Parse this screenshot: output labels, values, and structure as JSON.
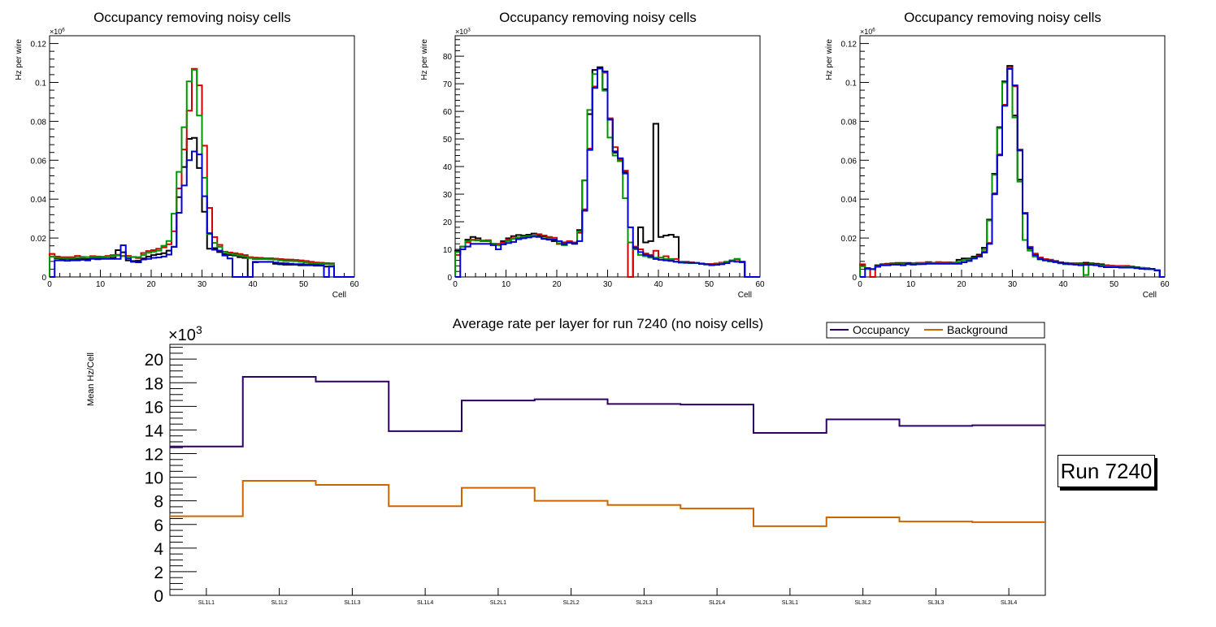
{
  "chart_data": [
    {
      "type": "line",
      "subtype": "step-histogram",
      "title": "Occupancy removing noisy cells",
      "xlabel": "Cell",
      "ylabel": "Hz per wire",
      "y_multiplier_label": "×10^6",
      "xlim": [
        0,
        60
      ],
      "ylim": [
        0,
        0.124
      ],
      "xticks": [
        "0",
        "10",
        "20",
        "30",
        "40",
        "50",
        "60"
      ],
      "yticks": [
        "0",
        "0.02",
        "0.04",
        "0.06",
        "0.08",
        "0.1",
        "0.12"
      ],
      "ytick_values": [
        0,
        0.02,
        0.04,
        0.06,
        0.08,
        0.1,
        0.12
      ],
      "bin_start": 0,
      "bin_width": 1,
      "series": [
        {
          "name": "black",
          "color": "#000000",
          "values": [
            0.0105,
            0.0095,
            0.0093,
            0.0093,
            0.0093,
            0.0093,
            0.0092,
            0.0092,
            0.0095,
            0.0095,
            0.0095,
            0.0095,
            0.0098,
            0.0138,
            0.0127,
            0.0085,
            0.0082,
            0.0083,
            0.0095,
            0.0105,
            0.0112,
            0.0117,
            0.0122,
            0.0135,
            0.0155,
            0.041,
            0.0565,
            0.071,
            0.0715,
            0.056,
            0.0335,
            0.0145,
            0.0148,
            0.0128,
            0.0118,
            0.0112,
            0.011,
            0.0102,
            0.0098,
            0,
            0.0078,
            0.0078,
            0.0078,
            0.0078,
            0.0068,
            0.0065,
            0.0063,
            0.0063,
            0.0063,
            0.006,
            0.006,
            0.006,
            0.0058,
            0.0058,
            0.0053,
            0.0053,
            0,
            0,
            0,
            0
          ]
        },
        {
          "name": "red",
          "color": "#d20000",
          "values": [
            0.0118,
            0.0105,
            0.0102,
            0.0102,
            0.0102,
            0.0108,
            0.0103,
            0.0102,
            0.0107,
            0.0105,
            0.0104,
            0.0108,
            0.0112,
            0.0114,
            0.0108,
            0.0108,
            0.0103,
            0.0097,
            0.0123,
            0.0133,
            0.0138,
            0.0145,
            0.0152,
            0.0168,
            0.0235,
            0.0455,
            0.0655,
            0.0855,
            0.107,
            0.0985,
            0.0675,
            0.0355,
            0.0205,
            0.0165,
            0.013,
            0.0126,
            0.0122,
            0.0118,
            0.0112,
            0.0102,
            0.0099,
            0.0098,
            0.0096,
            0.0096,
            0.0094,
            0.0092,
            0.009,
            0.0089,
            0.0087,
            0.0085,
            0.0082,
            0.0078,
            0.0074,
            0.0073,
            0.0071,
            0.007,
            0,
            0,
            0,
            0
          ]
        },
        {
          "name": "green",
          "color": "#009600",
          "values": [
            0.0105,
            0.0098,
            0.0097,
            0.0097,
            0.0097,
            0.0098,
            0.0099,
            0.0102,
            0.0103,
            0.0101,
            0.0101,
            0.0105,
            0.0108,
            0.011,
            0.0107,
            0.0105,
            0.0102,
            0.0102,
            0.0113,
            0.0124,
            0.013,
            0.0135,
            0.016,
            0.0185,
            0.0325,
            0.054,
            0.077,
            0.1005,
            0.1065,
            0.083,
            0.051,
            0.022,
            0.0175,
            0.0155,
            0.0128,
            0.012,
            0.0115,
            0.011,
            0.0105,
            0.0097,
            0.0092,
            0.0092,
            0.0092,
            0.0091,
            0.0089,
            0.0085,
            0.0082,
            0.0082,
            0.0081,
            0.0078,
            0.0073,
            0.007,
            0.0069,
            0.0068,
            0.0066,
            0.0065,
            0,
            0,
            0,
            0
          ]
        },
        {
          "name": "blue",
          "color": "#0000d2",
          "values": [
            0,
            0.0085,
            0.0085,
            0.0083,
            0.0085,
            0.0085,
            0.0088,
            0.0085,
            0.0093,
            0.0091,
            0.0093,
            0.0093,
            0.0093,
            0.0093,
            0.0163,
            0.0095,
            0.0078,
            0.0075,
            0.009,
            0.0093,
            0.0098,
            0.01,
            0.0105,
            0.0115,
            0.0155,
            0.033,
            0.047,
            0.06,
            0.0645,
            0.063,
            0.0415,
            0.0225,
            0.014,
            0.0135,
            0.011,
            0.0095,
            0,
            0,
            0,
            0,
            0.0075,
            0.0077,
            0.0077,
            0.0077,
            0.0074,
            0.0071,
            0.007,
            0.0068,
            0.0066,
            0.0066,
            0.0063,
            0.0063,
            0.0062,
            0.006,
            0,
            0.0055,
            0,
            0,
            0,
            0
          ]
        }
      ]
    },
    {
      "type": "line",
      "subtype": "step-histogram",
      "title": "Occupancy removing noisy cells",
      "xlabel": "Cell",
      "ylabel": "Hz per wire",
      "y_multiplier_label": "×10^3",
      "xlim": [
        0,
        60
      ],
      "ylim": [
        0,
        87.4
      ],
      "xticks": [
        "0",
        "10",
        "20",
        "30",
        "40",
        "50",
        "60"
      ],
      "yticks": [
        "0",
        "10",
        "20",
        "30",
        "40",
        "50",
        "60",
        "70",
        "80"
      ],
      "ytick_values": [
        0,
        10,
        20,
        30,
        40,
        50,
        60,
        70,
        80
      ],
      "bin_start": 0,
      "bin_width": 1,
      "series": [
        {
          "name": "black",
          "color": "#000000",
          "values": [
            9.5,
            11,
            13.5,
            14.5,
            14,
            13,
            13,
            12,
            11.8,
            13,
            14,
            14.8,
            15.2,
            15,
            15.3,
            15.7,
            15,
            14.7,
            14.4,
            13,
            12,
            12.5,
            12.5,
            12,
            17,
            35,
            59,
            75,
            76,
            68,
            57,
            45,
            42,
            38,
            0,
            10,
            18,
            12.5,
            13,
            55.5,
            14.5,
            15,
            15.3,
            14.5,
            5.3,
            5.3,
            5.3,
            5,
            4.7,
            4.7,
            4.7,
            4.7,
            5,
            5.3,
            6,
            6.5,
            5.5,
            0,
            0,
            0
          ]
        },
        {
          "name": "red",
          "color": "#d20000",
          "values": [
            8,
            11,
            12.5,
            13.5,
            13.3,
            13.2,
            13.3,
            12,
            12,
            12.5,
            13.5,
            14,
            14.3,
            14.6,
            14.9,
            15,
            15.5,
            15,
            14.5,
            14.2,
            12,
            12.3,
            13,
            12.5,
            16,
            24.5,
            46.5,
            69,
            75.5,
            74,
            57.5,
            47,
            42.5,
            38.5,
            0,
            11,
            10,
            8.5,
            8,
            9.5,
            7,
            7.5,
            6,
            6.5,
            5.5,
            5.5,
            5.3,
            5,
            4.9,
            4.7,
            4.7,
            4.9,
            5.2,
            5.5,
            6,
            6.3,
            5.5,
            0,
            0,
            0
          ]
        },
        {
          "name": "green",
          "color": "#009600",
          "values": [
            9,
            11,
            13,
            13.3,
            13.2,
            13,
            13,
            11.8,
            11.5,
            12,
            13,
            13.8,
            14.3,
            14.6,
            14.8,
            15,
            14.6,
            14,
            13.9,
            13.6,
            12.2,
            11.5,
            12.5,
            12.2,
            16.5,
            35,
            60.5,
            73.5,
            75.5,
            67.5,
            50.5,
            44,
            42,
            28.5,
            12.5,
            10,
            8,
            7.5,
            7,
            7,
            7,
            6.5,
            6.5,
            5.5,
            5.3,
            5.2,
            5,
            5,
            4.7,
            4.5,
            4.2,
            4.5,
            5,
            5.5,
            6,
            6.5,
            5.3,
            0,
            0,
            0
          ]
        },
        {
          "name": "blue",
          "color": "#0000d2",
          "values": [
            0,
            10,
            11,
            12,
            12,
            12,
            12,
            11.5,
            10,
            11.8,
            12.3,
            12.7,
            13.7,
            14,
            14.3,
            14.6,
            14.5,
            13.8,
            13.5,
            13.5,
            13,
            11.8,
            12.4,
            12.2,
            13,
            24,
            46,
            68.5,
            75.5,
            74.5,
            57,
            45.5,
            43,
            37.5,
            18,
            10.5,
            9,
            8,
            7.5,
            6.5,
            6.2,
            6,
            5.8,
            5.5,
            5.2,
            5.1,
            5.1,
            5.1,
            4.8,
            4.6,
            4.4,
            4.4,
            4.6,
            5,
            5.7,
            5.5,
            5.4,
            0,
            0,
            0
          ]
        }
      ]
    },
    {
      "type": "line",
      "subtype": "step-histogram",
      "title": "Occupancy removing noisy cells",
      "xlabel": "Cell",
      "ylabel": "Hz per wire",
      "y_multiplier_label": "×10^6",
      "xlim": [
        0,
        60
      ],
      "ylim": [
        0,
        0.124
      ],
      "xticks": [
        "0",
        "10",
        "20",
        "30",
        "40",
        "50",
        "60"
      ],
      "yticks": [
        "0",
        "0.02",
        "0.04",
        "0.06",
        "0.08",
        "0.1",
        "0.12"
      ],
      "ytick_values": [
        0,
        0.02,
        0.04,
        0.06,
        0.08,
        0.1,
        0.12
      ],
      "bin_start": 0,
      "bin_width": 1,
      "series": [
        {
          "name": "black",
          "color": "#000000",
          "values": [
            0.006,
            0.0045,
            0.004,
            0.006,
            0.0065,
            0.0068,
            0.007,
            0.0072,
            0.0072,
            0.0072,
            0.007,
            0.0072,
            0.0073,
            0.0076,
            0.0073,
            0.0076,
            0.0075,
            0.0075,
            0.0074,
            0.0088,
            0.0095,
            0.0095,
            0.0105,
            0.0115,
            0.015,
            0.0295,
            0.053,
            0.077,
            0.1005,
            0.1085,
            0.083,
            0.05,
            0.019,
            0.0145,
            0.0115,
            0.0098,
            0.0092,
            0.0088,
            0.0082,
            0.0075,
            0.0072,
            0.007,
            0.007,
            0.007,
            0.0073,
            0.007,
            0.0068,
            0.0065,
            0.006,
            0.0058,
            0.0055,
            0.0055,
            0.0055,
            0.0053,
            0.005,
            0.0047,
            0.0045,
            0.0042,
            0.0035,
            0
          ]
        },
        {
          "name": "red",
          "color": "#d20000",
          "values": [
            0.0065,
            0.0045,
            0,
            0.0055,
            0.0063,
            0.0065,
            0.0068,
            0.007,
            0.007,
            0.0068,
            0.0068,
            0.0072,
            0.0073,
            0.0073,
            0.0072,
            0.0075,
            0.0075,
            0.0074,
            0.0073,
            0.0075,
            0.0085,
            0.009,
            0.0095,
            0.0108,
            0.013,
            0.0175,
            0.043,
            0.063,
            0.0885,
            0.1075,
            0.098,
            0.0655,
            0.033,
            0.0155,
            0.012,
            0.01,
            0.0092,
            0.0088,
            0.008,
            0.0073,
            0.007,
            0.0068,
            0.0068,
            0.0066,
            0.0066,
            0.0065,
            0.0063,
            0.0058,
            0.0058,
            0.0058,
            0.0057,
            0.0057,
            0.0057,
            0.0053,
            0.0048,
            0.0046,
            0.0044,
            0.004,
            0.0035,
            0
          ]
        },
        {
          "name": "green",
          "color": "#009600",
          "values": [
            0.0055,
            0.004,
            0.004,
            0.0055,
            0.006,
            0.0063,
            0.0065,
            0.0066,
            0.0066,
            0.0066,
            0.0066,
            0.0068,
            0.007,
            0.0072,
            0.0072,
            0.0072,
            0.0072,
            0.0072,
            0.0072,
            0.0078,
            0.0085,
            0.009,
            0.0098,
            0.0105,
            0.014,
            0.029,
            0.0525,
            0.0765,
            0.1,
            0.107,
            0.082,
            0.049,
            0.019,
            0.0135,
            0.0105,
            0.009,
            0.0085,
            0.008,
            0.0075,
            0.007,
            0.0065,
            0.0065,
            0.0065,
            0.0065,
            0.001,
            0.0065,
            0.0063,
            0.006,
            0.0055,
            0.0055,
            0.0053,
            0.0053,
            0.005,
            0.005,
            0.0048,
            0.0045,
            0.0042,
            0.004,
            0.0035,
            0
          ]
        },
        {
          "name": "blue",
          "color": "#0000d2",
          "values": [
            0,
            0.0045,
            0.004,
            0.0052,
            0.006,
            0.006,
            0.0063,
            0.0063,
            0.006,
            0.0066,
            0.0063,
            0.0065,
            0.0066,
            0.0068,
            0.0068,
            0.0068,
            0.0068,
            0.0068,
            0.0068,
            0.0068,
            0.0075,
            0.0082,
            0.0095,
            0.0105,
            0.0125,
            0.017,
            0.0425,
            0.0625,
            0.088,
            0.107,
            0.0985,
            0.065,
            0.0325,
            0.015,
            0.0112,
            0.0092,
            0.0085,
            0.0082,
            0.0078,
            0.0072,
            0.0068,
            0.0065,
            0.0063,
            0.006,
            0.0062,
            0.0062,
            0.006,
            0.0055,
            0.005,
            0.005,
            0.005,
            0.0048,
            0.0048,
            0.0048,
            0.0045,
            0.0042,
            0.004,
            0.004,
            0.0033,
            0
          ]
        }
      ]
    },
    {
      "type": "line",
      "subtype": "step-histogram",
      "title": "Average rate per layer for run 7240 (no noisy cells)",
      "xlabel": "",
      "ylabel": "Mean Hz/Cell",
      "y_multiplier_label": "×10^3",
      "categories": [
        "SL1L1",
        "SL1L2",
        "SL1L3",
        "SL1L4",
        "SL2L1",
        "SL2L2",
        "SL2L3",
        "SL2L4",
        "SL3L1",
        "SL3L2",
        "SL3L3",
        "SL3L4"
      ],
      "ylim": [
        0,
        21.25
      ],
      "yticks": [
        "0",
        "2",
        "4",
        "6",
        "8",
        "10",
        "12",
        "14",
        "16",
        "18",
        "20"
      ],
      "ytick_values": [
        0,
        2,
        4,
        6,
        8,
        10,
        12,
        14,
        16,
        18,
        20
      ],
      "legend": "top-right",
      "series": [
        {
          "name": "Occupancy",
          "color": "#2d0066",
          "values": [
            12.6,
            18.5,
            18.1,
            13.9,
            16.5,
            16.6,
            16.2,
            16.15,
            13.75,
            14.9,
            14.35,
            14.4
          ]
        },
        {
          "name": "Background",
          "color": "#cc6600",
          "values": [
            6.7,
            9.7,
            9.35,
            7.55,
            9.1,
            8.0,
            7.65,
            7.35,
            5.85,
            6.6,
            6.25,
            6.2
          ]
        }
      ]
    }
  ],
  "annotation": {
    "run_label": "Run 7240"
  }
}
